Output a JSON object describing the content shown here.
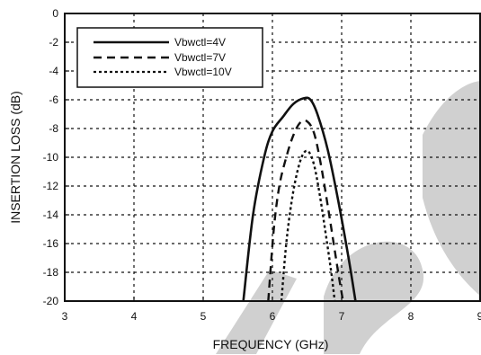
{
  "chart_data": {
    "type": "line",
    "xlabel": "FREQUENCY (GHz)",
    "ylabel": "INSERTION LOSS (dB)",
    "xlim": [
      3,
      9
    ],
    "ylim": [
      -20,
      0
    ],
    "x_ticks": [
      "3",
      "4",
      "5",
      "6",
      "7",
      "8",
      "9"
    ],
    "y_ticks": [
      "0",
      "-2",
      "-4",
      "-6",
      "-8",
      "-10",
      "-12",
      "-14",
      "-16",
      "-18",
      "-20"
    ],
    "grid": "dotted",
    "legend_position": "top-left",
    "series": [
      {
        "name": "Vbwctl=4V",
        "style": "solid",
        "points": [
          [
            5.58,
            -20
          ],
          [
            5.72,
            -14
          ],
          [
            5.88,
            -10
          ],
          [
            6.0,
            -8.2
          ],
          [
            6.15,
            -7.2
          ],
          [
            6.3,
            -6.3
          ],
          [
            6.45,
            -5.9
          ],
          [
            6.55,
            -6.0
          ],
          [
            6.65,
            -7.0
          ],
          [
            6.8,
            -9.5
          ],
          [
            6.95,
            -13
          ],
          [
            7.1,
            -17
          ],
          [
            7.2,
            -20
          ]
        ]
      },
      {
        "name": "Vbwctl=7V",
        "style": "dashed",
        "points": [
          [
            5.94,
            -20
          ],
          [
            6.02,
            -15
          ],
          [
            6.1,
            -12
          ],
          [
            6.2,
            -10
          ],
          [
            6.3,
            -8.5
          ],
          [
            6.4,
            -7.6
          ],
          [
            6.5,
            -7.5
          ],
          [
            6.6,
            -8.3
          ],
          [
            6.7,
            -10.5
          ],
          [
            6.82,
            -14
          ],
          [
            6.95,
            -18
          ],
          [
            7.02,
            -20
          ]
        ]
      },
      {
        "name": "Vbwctl=10V",
        "style": "dotted",
        "points": [
          [
            6.13,
            -20
          ],
          [
            6.2,
            -16
          ],
          [
            6.28,
            -13
          ],
          [
            6.36,
            -11
          ],
          [
            6.44,
            -9.8
          ],
          [
            6.52,
            -9.6
          ],
          [
            6.6,
            -10.5
          ],
          [
            6.68,
            -12.5
          ],
          [
            6.76,
            -15
          ],
          [
            6.85,
            -18
          ],
          [
            6.9,
            -20
          ]
        ]
      }
    ]
  },
  "colors": {
    "line": "#111111",
    "watermark": "#c8c8c8"
  }
}
